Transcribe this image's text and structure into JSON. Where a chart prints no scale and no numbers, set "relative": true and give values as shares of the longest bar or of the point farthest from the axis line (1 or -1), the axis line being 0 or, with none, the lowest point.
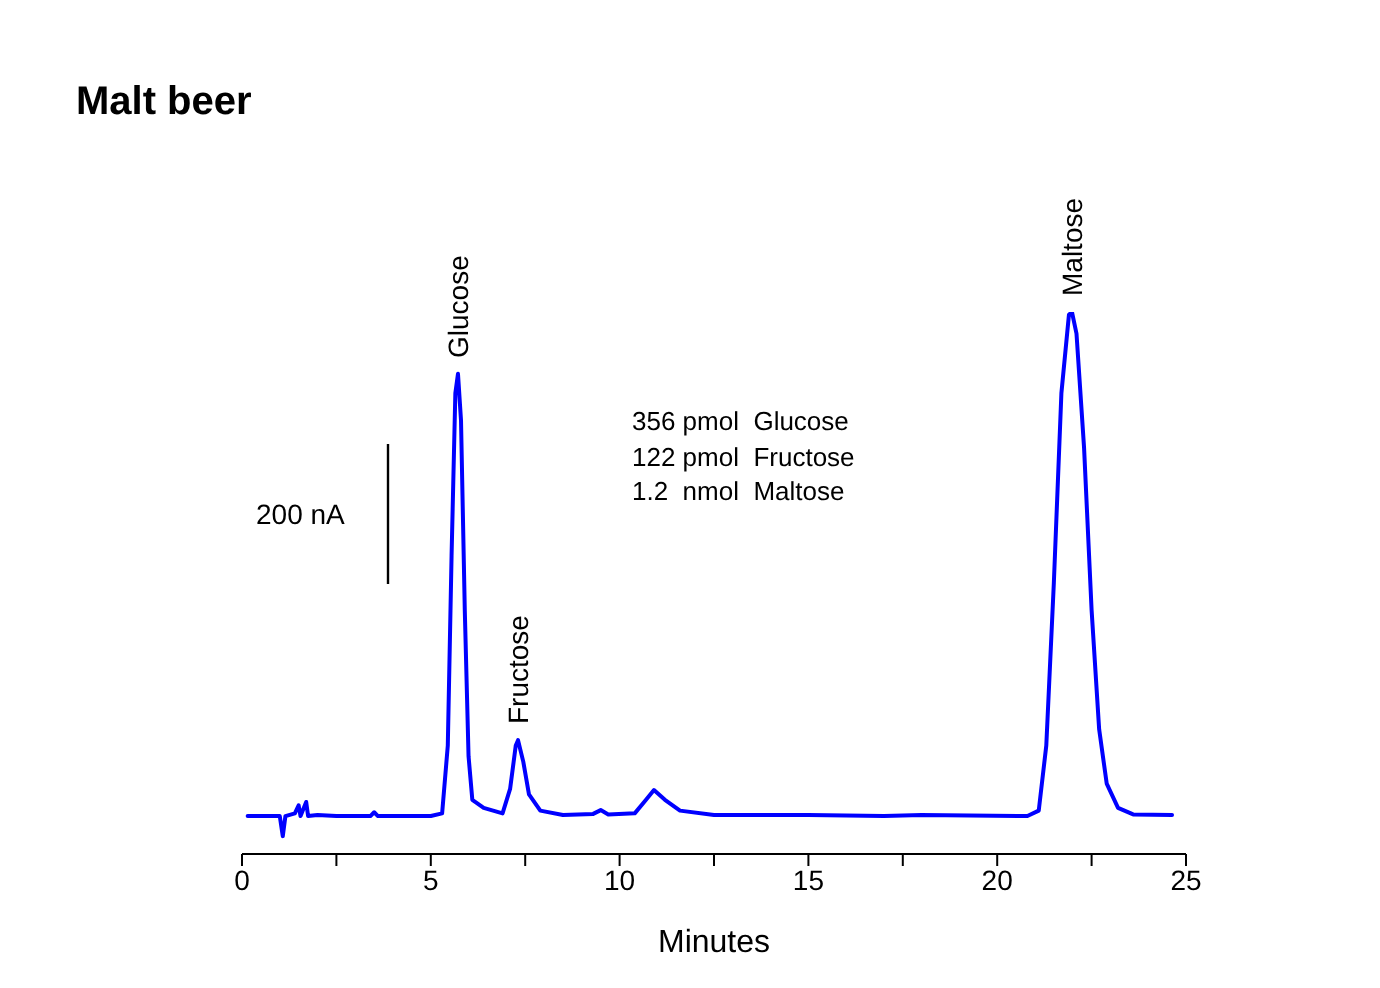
{
  "chart_data": {
    "type": "line",
    "title": "Malt beer",
    "xlabel": "Minutes",
    "relative": true,
    "color": "#0000ff",
    "marker": "none",
    "x": [
      0.15,
      1.0,
      1.08,
      1.15,
      1.4,
      1.5,
      1.55,
      1.7,
      1.75,
      2.0,
      2.5,
      3.4,
      3.5,
      3.6,
      5.0,
      5.3,
      5.45,
      5.55,
      5.65,
      5.72,
      5.8,
      5.9,
      6.0,
      6.1,
      6.4,
      6.9,
      7.1,
      7.25,
      7.31,
      7.45,
      7.6,
      7.9,
      8.5,
      9.3,
      9.5,
      9.7,
      10.4,
      10.7,
      10.91,
      11.2,
      11.6,
      12.5,
      15,
      17,
      18,
      20.8,
      21.1,
      21.3,
      21.5,
      21.7,
      21.9,
      21.98,
      22.1,
      22.3,
      22.5,
      22.7,
      22.9,
      23.2,
      23.6,
      24.63
    ],
    "values": [
      0.07,
      0.07,
      0.033,
      0.07,
      0.075,
      0.09,
      0.07,
      0.096,
      0.07,
      0.072,
      0.07,
      0.07,
      0.077,
      0.07,
      0.07,
      0.075,
      0.2,
      0.55,
      0.85,
      0.886,
      0.8,
      0.45,
      0.18,
      0.1,
      0.085,
      0.075,
      0.12,
      0.2,
      0.21,
      0.17,
      0.11,
      0.08,
      0.072,
      0.074,
      0.081,
      0.073,
      0.075,
      0.1,
      0.118,
      0.1,
      0.08,
      0.072,
      0.072,
      0.07,
      0.072,
      0.07,
      0.08,
      0.2,
      0.5,
      0.85,
      0.995,
      1,
      0.96,
      0.75,
      0.45,
      0.23,
      0.13,
      0.085,
      0.073,
      0.072
    ],
    "xlim": [
      0,
      25
    ],
    "xticks": [
      0,
      {
        "value": 2.5,
        "label": null
      },
      5,
      {
        "value": 7.5,
        "label": null
      },
      10,
      {
        "value": 12.5,
        "label": null
      },
      15,
      {
        "value": 17.5,
        "label": null
      },
      20,
      {
        "value": 22.5,
        "label": null
      },
      25
    ],
    "annotations": [
      {
        "text": "Glucose",
        "x": 5.72,
        "y": 0.886
      },
      {
        "text": "Fructose",
        "x": 7.31,
        "y": 0.21
      },
      {
        "text": "Maltose",
        "x": 21.98,
        "y": 1
      },
      "200 nA",
      "356 pmol  Glucose",
      "122 pmol  Fructose",
      "1.2  nmol  Maltose"
    ]
  }
}
